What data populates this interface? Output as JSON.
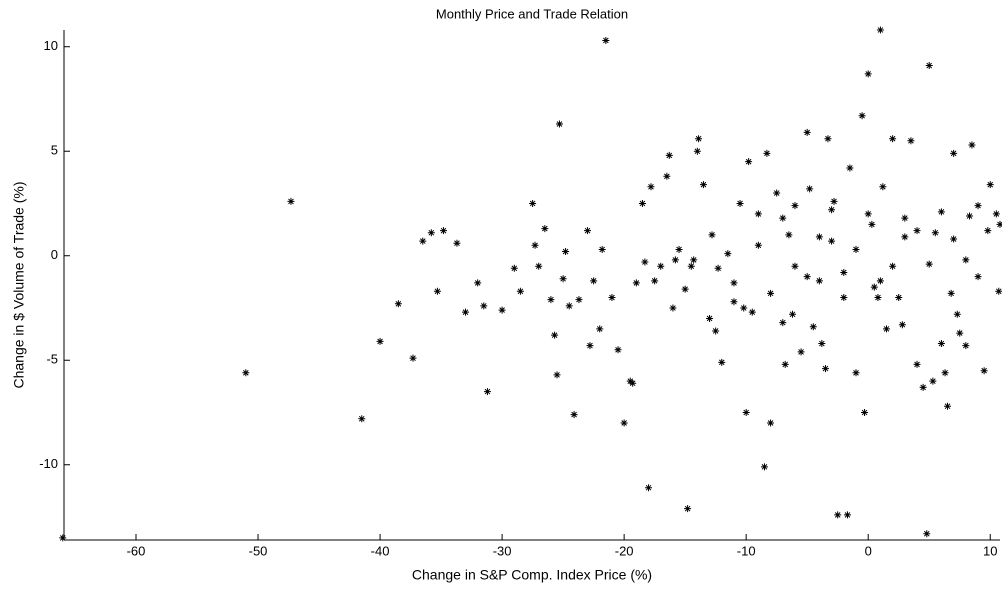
{
  "chart_data": {
    "type": "scatter",
    "title": "Monthly Price and Trade Relation",
    "x_label": "Change in S&P Comp. Index Price (%)",
    "y_label": "Change in $ Volume of Trade (%)",
    "xlim": [
      -65.9,
      10.8
    ],
    "ylim": [
      -13.6,
      10.8
    ],
    "xticks": [
      -60,
      -50,
      -40,
      -30,
      -20,
      -10,
      0,
      10
    ],
    "yticks": [
      -10,
      -5,
      0,
      5,
      10
    ],
    "color": "#000000",
    "x": [
      -66,
      -51,
      -47.3,
      -41.5,
      -40,
      -38.5,
      -37.3,
      -36.5,
      -35.8,
      -35.3,
      -34.8,
      -33.7,
      -33,
      -32,
      -31.5,
      -31.2,
      -30,
      -29,
      -28.5,
      -27.5,
      -27.3,
      -27,
      -26.5,
      -26,
      -25.7,
      -25.5,
      -25.3,
      -25,
      -24.8,
      -24.5,
      -24.1,
      -23.7,
      -23,
      -22.8,
      -22.5,
      -22,
      -21.8,
      -21.5,
      -21,
      -20.5,
      -20,
      -19.5,
      -19.3,
      -19,
      -18.5,
      -18.3,
      -18,
      -17.8,
      -17.5,
      -17,
      -16.5,
      -16.3,
      -16,
      -15.5,
      -15,
      -14.8,
      -14.3,
      -14,
      -13.9,
      -13.5,
      -13,
      -12.5,
      -12.3,
      -12,
      -11.5,
      -11,
      -10.5,
      -10,
      -9.8,
      -9.5,
      -9,
      -8.5,
      -8.3,
      -8,
      -7.5,
      -7,
      -6.8,
      -6.5,
      -6,
      -5.5,
      -5,
      -4.8,
      -4.5,
      -4,
      -3.5,
      -3.3,
      -3,
      -2.8,
      -2.5,
      -2,
      -1.7,
      -1.5,
      -1,
      -0.5,
      0,
      -0.3,
      0.3,
      0.5,
      1,
      1.2,
      1.5,
      2,
      2.5,
      3,
      3.5,
      4,
      4.5,
      4.8,
      5,
      5.3,
      5.5,
      6,
      6.3,
      6.5,
      7,
      7.3,
      7.5,
      8,
      8.3,
      8.5,
      9,
      9.5,
      10,
      10.5,
      10.7,
      10.8,
      -9,
      -7,
      -5,
      -3,
      -1,
      1,
      3,
      5,
      7,
      9,
      -8,
      -6,
      -4,
      -2,
      0,
      2,
      4,
      6,
      8,
      -11,
      -12.8,
      -15.8,
      -14.5,
      -10.2,
      -6.2,
      -3.8,
      0.8,
      2.8,
      6.8,
      9.8
    ],
    "y": [
      -13.5,
      -5.6,
      2.6,
      -7.8,
      -4.1,
      -2.3,
      -4.9,
      0.7,
      1.1,
      -1.7,
      1.2,
      0.6,
      -2.7,
      -1.3,
      -2.4,
      -6.5,
      -2.6,
      -0.6,
      -1.7,
      2.5,
      0.5,
      -0.5,
      1.3,
      -2.1,
      -3.8,
      -5.7,
      6.3,
      -1.1,
      0.2,
      -2.4,
      -7.6,
      -2.1,
      1.2,
      -4.3,
      -1.2,
      -3.5,
      0.3,
      10.3,
      -2,
      -4.5,
      -8,
      -6,
      -6.1,
      -1.3,
      2.5,
      -0.3,
      -11.1,
      3.3,
      -1.2,
      -0.5,
      3.8,
      4.8,
      -2.5,
      0.3,
      -1.6,
      -12.1,
      -0.2,
      5,
      5.6,
      3.4,
      -3,
      -3.6,
      -0.6,
      -5.1,
      0.1,
      -1.3,
      2.5,
      -7.5,
      4.5,
      -2.7,
      2,
      -10.1,
      4.9,
      -8,
      3,
      -3.2,
      -5.2,
      1,
      -0.5,
      -4.6,
      5.9,
      3.2,
      -3.4,
      -1.2,
      -5.4,
      5.6,
      0.7,
      2.6,
      -12.4,
      -2,
      -12.4,
      4.2,
      -5.6,
      6.7,
      8.7,
      -7.5,
      1.5,
      -1.5,
      10.8,
      3.3,
      -3.5,
      5.6,
      -2,
      0.9,
      5.5,
      -5.2,
      -6.3,
      -13.3,
      9.1,
      -6,
      1.1,
      -4.2,
      -5.6,
      -7.2,
      4.9,
      -2.8,
      -3.7,
      -4.3,
      1.9,
      5.3,
      -1,
      -5.5,
      3.4,
      2,
      -1.7,
      1.5,
      0.5,
      1.8,
      -1,
      2.2,
      0.3,
      -1.2,
      1.8,
      -0.4,
      0.8,
      2.4,
      -1.8,
      2.4,
      0.9,
      -0.8,
      2,
      -0.5,
      1.2,
      2.1,
      -0.2,
      -2.2,
      1,
      -0.2,
      -0.5,
      -2.5,
      -2.8,
      -4.2,
      -2,
      -3.3,
      -1.8,
      1.2
    ]
  }
}
